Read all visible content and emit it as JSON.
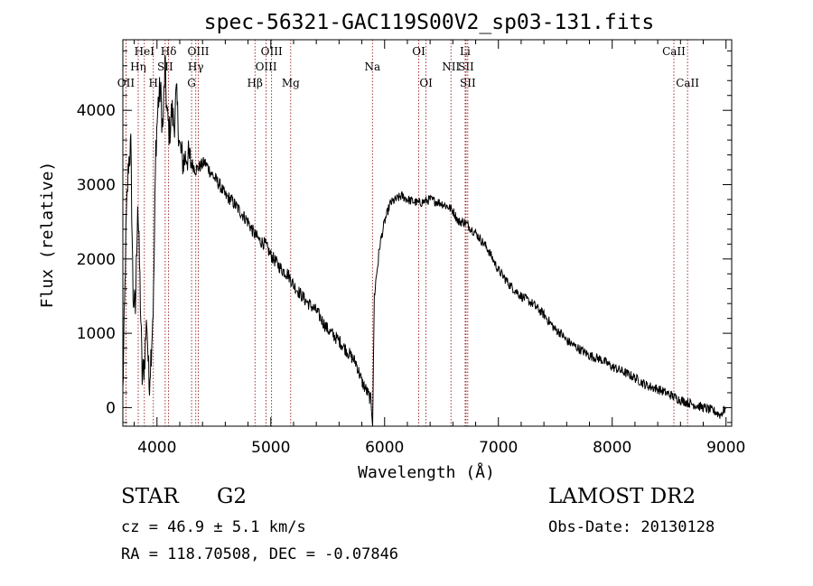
{
  "chart_data": {
    "type": "line",
    "title": "spec-56321-GAC119S00V2_sp03-131.fits",
    "xlabel": "Wavelength (Å)",
    "ylabel": "Flux (relative)",
    "xlim": [
      3700,
      9050
    ],
    "ylim": [
      -250,
      4950
    ],
    "x_ticks": [
      4000,
      5000,
      6000,
      7000,
      8000,
      9000
    ],
    "y_ticks": [
      0,
      1000,
      2000,
      3000,
      4000
    ],
    "x_tick_labels": [
      "4000",
      "5000",
      "6000",
      "7000",
      "8000",
      "9000"
    ],
    "y_tick_labels": [
      "0",
      "1000",
      "2000",
      "3000",
      "4000"
    ],
    "grid": false,
    "line_color": "#000000",
    "marker_color": "#8b0000",
    "series": [
      {
        "x": [
          3700,
          3730,
          3750,
          3770,
          3790,
          3810,
          3830,
          3850,
          3870,
          3890,
          3910,
          3930,
          3950,
          3970,
          3990,
          4010,
          4030,
          4050,
          4070,
          4090,
          4110,
          4130,
          4150,
          4170,
          4200,
          4230,
          4260,
          4300,
          4340,
          4380,
          4420,
          4460,
          4500,
          4550,
          4600,
          4650,
          4700,
          4750,
          4800,
          4850,
          4900,
          4950,
          5000,
          5050,
          5100,
          5150,
          5200,
          5300,
          5400,
          5500,
          5600,
          5700,
          5750,
          5800,
          5850,
          5880,
          5895,
          5910,
          5930,
          5960,
          6000,
          6050,
          6100,
          6150,
          6200,
          6300,
          6400,
          6500,
          6560,
          6600,
          6650,
          6700,
          6800,
          6900,
          7000,
          7100,
          7200,
          7300,
          7400,
          7500,
          7550,
          7600,
          7700,
          7800,
          7900,
          8000,
          8100,
          8200,
          8300,
          8400,
          8500,
          8600,
          8700,
          8800,
          8900,
          8950,
          9000
        ],
        "y": [
          200,
          2500,
          3300,
          3500,
          1500,
          1300,
          2800,
          1700,
          400,
          600,
          1200,
          300,
          800,
          1500,
          3500,
          4100,
          4300,
          3700,
          4600,
          3900,
          3700,
          4000,
          3800,
          4200,
          3500,
          3300,
          3400,
          3300,
          3200,
          3250,
          3300,
          3200,
          3100,
          3000,
          2850,
          2800,
          2700,
          2600,
          2500,
          2350,
          2250,
          2200,
          2050,
          1950,
          1850,
          1800,
          1650,
          1450,
          1300,
          1050,
          900,
          700,
          600,
          350,
          200,
          100,
          -200,
          1500,
          1800,
          2200,
          2500,
          2750,
          2800,
          2850,
          2800,
          2750,
          2800,
          2750,
          2700,
          2650,
          2500,
          2500,
          2350,
          2150,
          1850,
          1650,
          1500,
          1400,
          1250,
          1050,
          1000,
          900,
          800,
          700,
          650,
          550,
          480,
          400,
          300,
          250,
          180,
          100,
          50,
          0,
          -50,
          -100,
          0
        ]
      }
    ],
    "lines": [
      {
        "label": "OII",
        "x": 3727,
        "row": 3
      },
      {
        "label": "Hη",
        "x": 3835,
        "row": 2
      },
      {
        "label": "HeI",
        "x": 3889,
        "row": 1
      },
      {
        "label": "H",
        "x": 3968,
        "row": 3
      },
      {
        "label": "SII",
        "x": 4072,
        "row": 2
      },
      {
        "label": "Hδ",
        "x": 4102,
        "row": 1
      },
      {
        "label": "G",
        "x": 4304,
        "row": 3
      },
      {
        "label": "OIII",
        "x": 4363,
        "row": 1
      },
      {
        "label": "Hγ",
        "x": 4341,
        "row": 2
      },
      {
        "label": "Hβ",
        "x": 4861,
        "row": 3
      },
      {
        "label": "OIII",
        "x": 4959,
        "row": 2
      },
      {
        "label": "OIII",
        "x": 5007,
        "row": 1
      },
      {
        "label": "Mg",
        "x": 5175,
        "row": 3
      },
      {
        "label": "Na",
        "x": 5893,
        "row": 2
      },
      {
        "label": "OI",
        "x": 6300,
        "row": 1
      },
      {
        "label": "OI",
        "x": 6364,
        "row": 3
      },
      {
        "label": "NII",
        "x": 6583,
        "row": 2
      },
      {
        "label": "Li",
        "x": 6708,
        "row": 1
      },
      {
        "label": "SII",
        "x": 6716,
        "row": 2
      },
      {
        "label": "SII",
        "x": 6731,
        "row": 3
      },
      {
        "label": "CaII",
        "x": 8542,
        "row": 1
      },
      {
        "label": "CaII",
        "x": 8662,
        "row": 3
      }
    ]
  },
  "info": {
    "class_label": "STAR",
    "subclass": "G2",
    "cz": "cz = 46.9 ± 5.1 km/s",
    "coords": "RA = 118.70508, DEC =  -0.07846",
    "survey": "LAMOST DR2",
    "obs_date": "Obs-Date: 20130128"
  }
}
